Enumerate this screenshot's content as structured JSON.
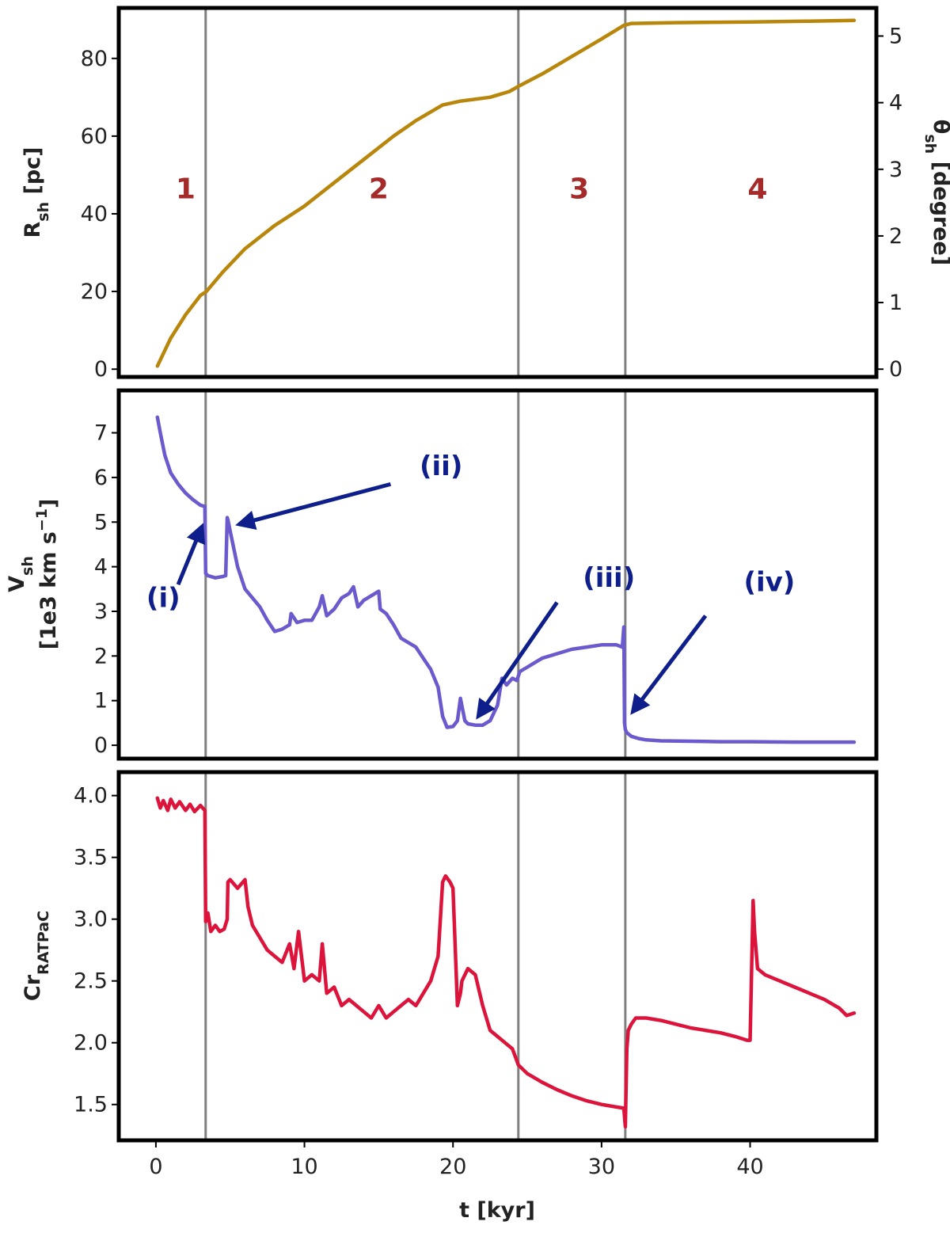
{
  "chart_data": [
    {
      "type": "line",
      "panel": "top",
      "xlim": [
        -2.5,
        48.5
      ],
      "ylim": [
        -2,
        93
      ],
      "yticks": [
        0,
        20,
        40,
        60,
        80
      ],
      "y2lim": [
        -0.1166,
        5.422
      ],
      "y2ticks": [
        0,
        1,
        2,
        3,
        4,
        5
      ],
      "ylabel": {
        "main": "R",
        "sub": "sh",
        "rest": " [pc]"
      },
      "y2label": {
        "main": "θ",
        "sub": "sh",
        "rest": " [degree]"
      },
      "line_color": "#b8860b",
      "phase_labels": [
        {
          "text": "1",
          "x": 2.0,
          "y": 44
        },
        {
          "text": "2",
          "x": 15.0,
          "y": 44
        },
        {
          "text": "3",
          "x": 28.5,
          "y": 44
        },
        {
          "text": "4",
          "x": 40.5,
          "y": 44
        }
      ],
      "series": [
        {
          "x": [
            0.1,
            1,
            2,
            3,
            3.4,
            4.5,
            6,
            8,
            10,
            12,
            14,
            16,
            17.5,
            19.3,
            20.5,
            22.5,
            23.8,
            24.5,
            26,
            28,
            30,
            31.5,
            32,
            35,
            40,
            44,
            47
          ],
          "y": [
            0.8,
            8,
            14,
            19,
            20,
            25,
            31,
            37,
            42,
            48,
            54,
            60,
            64,
            68,
            69,
            70,
            71.5,
            73,
            76,
            80.5,
            85,
            88.5,
            89,
            89.2,
            89.4,
            89.6,
            89.8
          ]
        }
      ]
    },
    {
      "type": "line",
      "panel": "middle",
      "xlim": [
        -2.5,
        48.5
      ],
      "ylim": [
        -0.3,
        7.95
      ],
      "yticks": [
        0,
        1,
        2,
        3,
        4,
        5,
        6,
        7
      ],
      "ylabel": {
        "line1_main": "V",
        "line1_sub": "sh",
        "line2": "[1e3 km s",
        "line2_sup": "−1",
        "line2_end": "]"
      },
      "line_color": "#6a5acd",
      "annotations": [
        {
          "text": "(i)",
          "label_x": 0.5,
          "label_y": 3.1,
          "arrow_from": [
            1.5,
            3.6
          ],
          "arrow_to": [
            3.1,
            4.9
          ]
        },
        {
          "text": "(ii)",
          "label_x": 19.2,
          "label_y": 6.05,
          "arrow_from": [
            15.8,
            5.85
          ],
          "arrow_to": [
            5.6,
            4.95
          ]
        },
        {
          "text": "(iii)",
          "label_x": 30.5,
          "label_y": 3.55,
          "arrow_from": [
            27,
            3.2
          ],
          "arrow_to": [
            21.7,
            0.65
          ]
        },
        {
          "text": "(iv)",
          "label_x": 41.3,
          "label_y": 3.45,
          "arrow_from": [
            37,
            2.9
          ],
          "arrow_to": [
            32.1,
            0.75
          ]
        }
      ],
      "series": [
        {
          "x": [
            0.1,
            0.3,
            0.6,
            1.0,
            1.5,
            2.0,
            2.5,
            3.0,
            3.3,
            3.35,
            3.5,
            4.0,
            4.5,
            4.7,
            4.8,
            4.85,
            5.0,
            5.5,
            6.0,
            6.5,
            7.0,
            7.5,
            8.0,
            8.5,
            9.0,
            9.1,
            9.5,
            10.0,
            10.5,
            11.0,
            11.2,
            11.5,
            12.0,
            12.5,
            13.0,
            13.3,
            13.6,
            14.0,
            14.5,
            15.0,
            15.1,
            15.5,
            16.0,
            16.5,
            17.0,
            17.5,
            18.0,
            18.5,
            19.0,
            19.3,
            19.6,
            20.0,
            20.3,
            20.5,
            20.8,
            21.0,
            21.5,
            22.0,
            22.5,
            23.0,
            23.3,
            23.6,
            24.0,
            24.3,
            24.5,
            25.0,
            25.5,
            26.0,
            27.0,
            28.0,
            29.0,
            30.0,
            31.0,
            31.4,
            31.5,
            31.55,
            31.6,
            31.7,
            32.0,
            32.5,
            33.0,
            34.0,
            36.0,
            38.0,
            40.0,
            43.0,
            47.0
          ],
          "y": [
            7.35,
            7.0,
            6.5,
            6.1,
            5.85,
            5.65,
            5.5,
            5.38,
            5.35,
            3.85,
            3.8,
            3.75,
            3.78,
            3.8,
            5.1,
            5.05,
            4.8,
            4.0,
            3.5,
            3.3,
            3.1,
            2.8,
            2.55,
            2.6,
            2.7,
            2.95,
            2.75,
            2.8,
            2.8,
            3.1,
            3.35,
            2.9,
            3.05,
            3.3,
            3.4,
            3.55,
            3.1,
            3.25,
            3.35,
            3.45,
            3.05,
            2.95,
            2.7,
            2.4,
            2.3,
            2.2,
            1.95,
            1.7,
            1.3,
            0.65,
            0.4,
            0.42,
            0.55,
            1.05,
            0.55,
            0.48,
            0.45,
            0.45,
            0.55,
            0.9,
            1.5,
            1.35,
            1.5,
            1.45,
            1.65,
            1.75,
            1.85,
            1.95,
            2.05,
            2.15,
            2.2,
            2.25,
            2.25,
            2.2,
            2.65,
            0.5,
            0.35,
            0.28,
            0.2,
            0.15,
            0.12,
            0.1,
            0.09,
            0.08,
            0.08,
            0.07,
            0.07
          ]
        }
      ]
    },
    {
      "type": "line",
      "panel": "bottom",
      "xlim": [
        -2.5,
        48.5
      ],
      "ylim": [
        1.21,
        4.19
      ],
      "yticks": [
        1.5,
        2.0,
        2.5,
        3.0,
        3.5,
        4.0
      ],
      "xticks": [
        0,
        10,
        20,
        30,
        40
      ],
      "xlabel": "t [kyr]",
      "ylabel": {
        "main": "Cr",
        "sub": "RATPaC"
      },
      "line_color": "#dc143c",
      "series": [
        {
          "x": [
            0.1,
            0.3,
            0.5,
            0.8,
            1.0,
            1.3,
            1.6,
            2.0,
            2.3,
            2.6,
            3.0,
            3.3,
            3.35,
            3.5,
            3.7,
            4.0,
            4.3,
            4.6,
            4.8,
            4.85,
            5.0,
            5.5,
            6.0,
            6.2,
            6.5,
            7.0,
            7.5,
            8.0,
            8.5,
            9.0,
            9.3,
            9.6,
            10.0,
            10.5,
            11.0,
            11.2,
            11.5,
            12.0,
            12.5,
            13.0,
            13.5,
            14.0,
            14.5,
            15.0,
            15.5,
            16.0,
            16.5,
            17.0,
            17.5,
            18.0,
            18.5,
            19.0,
            19.3,
            19.5,
            19.8,
            20.0,
            20.3,
            20.5,
            20.6,
            21.0,
            21.5,
            22.0,
            22.5,
            23.0,
            23.5,
            24.0,
            24.4,
            25.0,
            26.0,
            27.0,
            28.0,
            29.0,
            30.0,
            31.0,
            31.5,
            31.6,
            31.7,
            31.8,
            32.0,
            32.3,
            32.7,
            33.0,
            34.0,
            35.0,
            36.0,
            37.0,
            38.0,
            39.0,
            39.8,
            40.0,
            40.2,
            40.3,
            40.5,
            41.0,
            42.0,
            43.0,
            44.0,
            45.0,
            46.0,
            46.5,
            47.0
          ],
          "y": [
            3.98,
            3.9,
            3.96,
            3.88,
            3.97,
            3.9,
            3.95,
            3.88,
            3.93,
            3.87,
            3.92,
            3.88,
            2.98,
            3.05,
            2.9,
            2.95,
            2.9,
            2.92,
            3.0,
            3.3,
            3.32,
            3.25,
            3.32,
            3.1,
            2.95,
            2.85,
            2.75,
            2.7,
            2.65,
            2.8,
            2.6,
            2.9,
            2.5,
            2.55,
            2.5,
            2.8,
            2.4,
            2.45,
            2.3,
            2.35,
            2.3,
            2.25,
            2.2,
            2.3,
            2.2,
            2.25,
            2.3,
            2.35,
            2.3,
            2.4,
            2.5,
            2.7,
            3.3,
            3.35,
            3.3,
            3.25,
            2.3,
            2.4,
            2.5,
            2.6,
            2.55,
            2.3,
            2.1,
            2.05,
            2.0,
            1.95,
            1.82,
            1.75,
            1.68,
            1.62,
            1.57,
            1.53,
            1.5,
            1.48,
            1.47,
            1.32,
            1.95,
            2.1,
            2.15,
            2.2,
            2.2,
            2.2,
            2.18,
            2.15,
            2.12,
            2.1,
            2.08,
            2.05,
            2.02,
            2.02,
            3.15,
            2.9,
            2.6,
            2.55,
            2.5,
            2.45,
            2.4,
            2.35,
            2.28,
            2.22,
            2.24
          ]
        }
      ]
    }
  ],
  "vlines_x": [
    3.35,
    24.4,
    31.6
  ],
  "vline_color": "#808080",
  "arrow_color": "#0e1f8c"
}
